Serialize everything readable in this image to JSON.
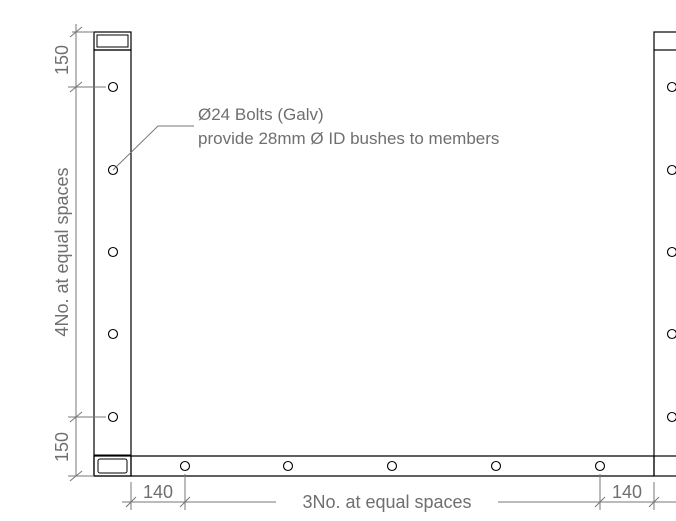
{
  "colors": {
    "linework": "#000000",
    "dimension_text": "#6f6f6f",
    "dimension_lines": "#777777"
  },
  "note": {
    "line1": "Ø24 Bolts (Galv)",
    "line2": "provide 28mm Ø ID bushes to members"
  },
  "vertical_dims": {
    "top_edge": "150",
    "bottom_edge": "150",
    "spacing": "4No. at equal spaces"
  },
  "horizontal_dims": {
    "left_edge": "140",
    "right_edge": "140",
    "spacing": "3No. at equal spaces"
  }
}
